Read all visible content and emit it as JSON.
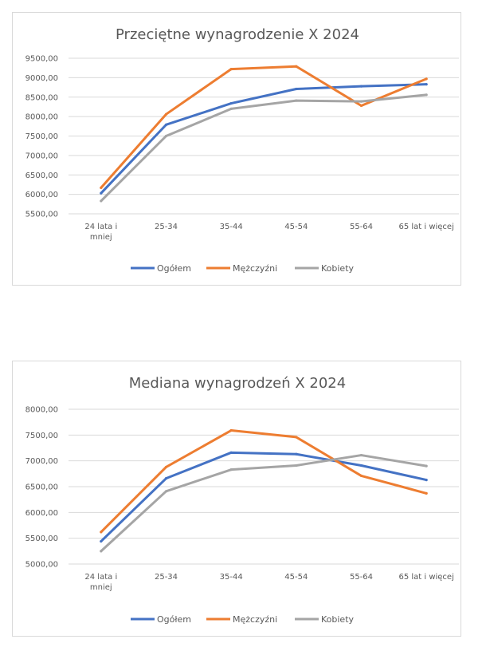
{
  "chart_data": [
    {
      "type": "line",
      "title": "Przeciętne wynagrodzenie X 2024",
      "categories": [
        [
          "24 lata i",
          "mniej"
        ],
        [
          "25-34"
        ],
        [
          "35-44"
        ],
        [
          "45-54"
        ],
        [
          "55-64"
        ],
        [
          "65 lat i więcej"
        ]
      ],
      "ylim": [
        5500,
        9500
      ],
      "yticks": [
        "9500,00",
        "9000,00",
        "8500,00",
        "8000,00",
        "7500,00",
        "7000,00",
        "6500,00",
        "6000,00",
        "5500,00"
      ],
      "ytick_values": [
        9500,
        9000,
        8500,
        8000,
        7500,
        7000,
        6500,
        6000,
        5500
      ],
      "grid": true,
      "legend_position": "bottom",
      "series": [
        {
          "name": "Ogółem",
          "color": "#4472c4",
          "values": [
            6030,
            7790,
            8340,
            8710,
            8780,
            8830
          ]
        },
        {
          "name": "Mężczyźni",
          "color": "#ed7d31",
          "values": [
            6170,
            8060,
            9220,
            9290,
            8280,
            8970
          ]
        },
        {
          "name": "Kobiety",
          "color": "#a5a5a5",
          "values": [
            5830,
            7500,
            8200,
            8410,
            8390,
            8560
          ]
        }
      ]
    },
    {
      "type": "line",
      "title": "Mediana wynagrodzeń X 2024",
      "categories": [
        [
          "24 lata i",
          "mniej"
        ],
        [
          "25-34"
        ],
        [
          "35-44"
        ],
        [
          "45-54"
        ],
        [
          "55-64"
        ],
        [
          "65 lat i więcej"
        ]
      ],
      "ylim": [
        5000,
        8000
      ],
      "yticks": [
        "8000,00",
        "7500,00",
        "7000,00",
        "6500,00",
        "6000,00",
        "5500,00",
        "5000,00"
      ],
      "ytick_values": [
        8000,
        7500,
        7000,
        6500,
        6000,
        5500,
        5000
      ],
      "grid": true,
      "legend_position": "bottom",
      "series": [
        {
          "name": "Ogółem",
          "color": "#4472c4",
          "values": [
            5440,
            6660,
            7160,
            7130,
            6910,
            6630
          ]
        },
        {
          "name": "Mężczyźni",
          "color": "#ed7d31",
          "values": [
            5620,
            6880,
            7590,
            7460,
            6710,
            6370
          ]
        },
        {
          "name": "Kobiety",
          "color": "#a5a5a5",
          "values": [
            5250,
            6410,
            6830,
            6910,
            7110,
            6900
          ]
        }
      ]
    }
  ]
}
